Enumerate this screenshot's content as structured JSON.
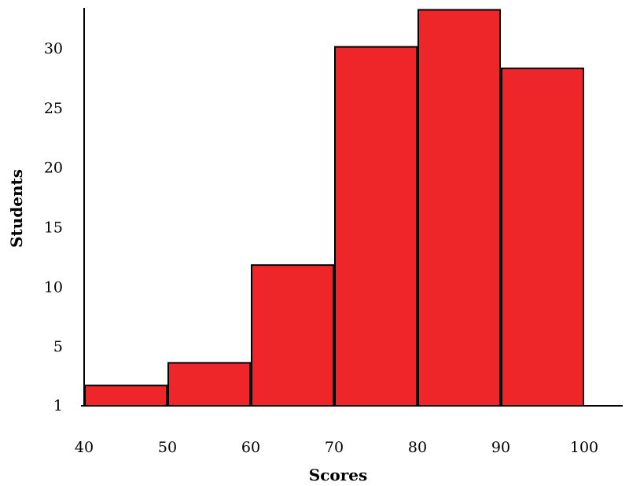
{
  "chart_data": {
    "type": "bar",
    "title": "",
    "xlabel": "Scores",
    "ylabel": "Students",
    "bins": [
      {
        "from": 40,
        "to": 50,
        "value": 1.7
      },
      {
        "from": 50,
        "to": 60,
        "value": 3.6
      },
      {
        "from": 60,
        "to": 70,
        "value": 11.8
      },
      {
        "from": 70,
        "to": 80,
        "value": 30.1
      },
      {
        "from": 80,
        "to": 90,
        "value": 33.2
      },
      {
        "from": 90,
        "to": 100,
        "value": 28.3
      }
    ],
    "x_ticks": [
      "40",
      "50",
      "60",
      "70",
      "80",
      "90",
      "100"
    ],
    "y_ticks": [
      {
        "value": 1,
        "label": "1"
      },
      {
        "value": 5,
        "label": "5"
      },
      {
        "value": 10,
        "label": "10"
      },
      {
        "value": 15,
        "label": "15"
      },
      {
        "value": 20,
        "label": "20"
      },
      {
        "value": 25,
        "label": "25"
      },
      {
        "value": 30,
        "label": "30"
      }
    ],
    "xlim": [
      40,
      100
    ],
    "ylim": [
      0,
      33.5
    ],
    "bar_color": "#ee2629",
    "grid": false,
    "legend": "none"
  }
}
